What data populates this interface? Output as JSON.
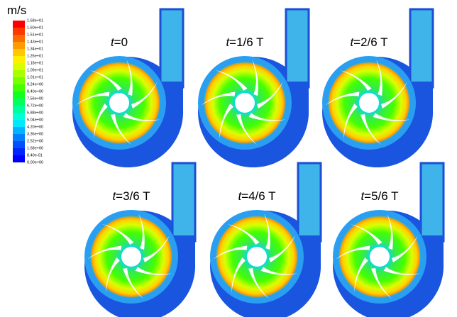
{
  "legend": {
    "unit": "m/s",
    "labels": [
      "1.68e+01",
      "1.60e+01",
      "1.51e+01",
      "1.43e+01",
      "1.34e+01",
      "1.26e+01",
      "1.18e+01",
      "1.09e+01",
      "1.01e+01",
      "9.24e+00",
      "8.40e+00",
      "7.56e+00",
      "6.72e+00",
      "5.88e+00",
      "5.04e+00",
      "4.20e+00",
      "3.36e+00",
      "2.52e+00",
      "1.68e+00",
      "8.40e-01",
      "0.00e+00"
    ],
    "colors": [
      "#ff0000",
      "#ff3800",
      "#ff6a00",
      "#ff9a00",
      "#ffc800",
      "#fff000",
      "#d8ff00",
      "#a8ff00",
      "#78ff00",
      "#44ff00",
      "#10ff20",
      "#00ff60",
      "#00ff9c",
      "#00ffd4",
      "#00e8ff",
      "#00b4ff",
      "#0080ff",
      "#0050ff",
      "#0024ff",
      "#0000ff"
    ]
  },
  "variable": "t",
  "panels": [
    "=0",
    "=1/6 T",
    "=2/6 T",
    "=3/6 T",
    "=4/6 T",
    "=5/6 T"
  ]
}
